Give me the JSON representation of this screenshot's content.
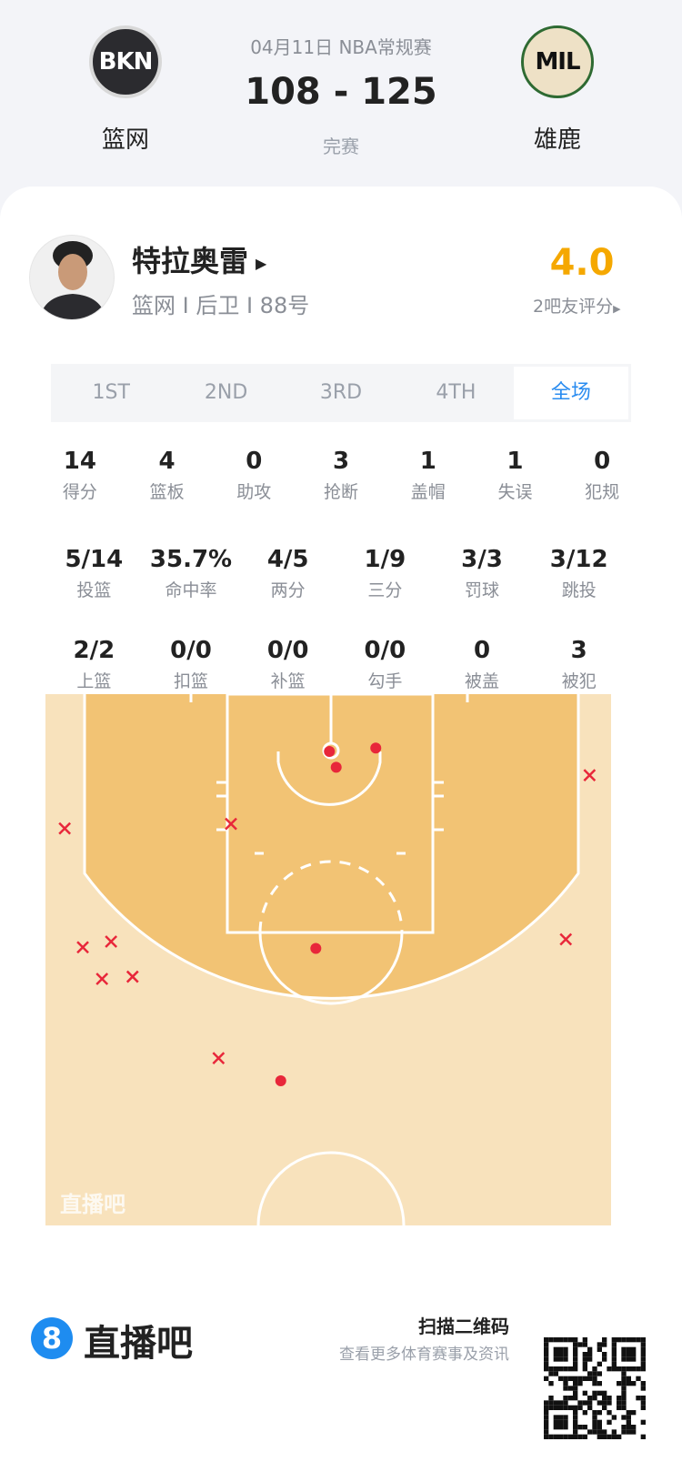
{
  "header": {
    "date_league": "04月11日 NBA常规赛",
    "score": "108 - 125",
    "status": "完赛",
    "home": {
      "abbr": "BKN",
      "name": "篮网"
    },
    "away": {
      "abbr": "MIL",
      "name": "雄鹿"
    }
  },
  "player": {
    "name": "特拉奥雷",
    "info": "篮网 I 后卫 I 88号",
    "rating": "4.0",
    "rating_label": "2吧友评分",
    "rating_color": "#f5a800"
  },
  "tabs": [
    {
      "label": "1ST"
    },
    {
      "label": "2ND"
    },
    {
      "label": "3RD"
    },
    {
      "label": "4TH"
    },
    {
      "label": "全场",
      "active": true
    }
  ],
  "stats_rows": [
    [
      {
        "v": "14",
        "l": "得分"
      },
      {
        "v": "4",
        "l": "篮板"
      },
      {
        "v": "0",
        "l": "助攻"
      },
      {
        "v": "3",
        "l": "抢断"
      },
      {
        "v": "1",
        "l": "盖帽"
      },
      {
        "v": "1",
        "l": "失误"
      },
      {
        "v": "0",
        "l": "犯规"
      }
    ],
    [
      {
        "v": "5/14",
        "l": "投篮"
      },
      {
        "v": "35.7%",
        "l": "命中率"
      },
      {
        "v": "4/5",
        "l": "两分"
      },
      {
        "v": "1/9",
        "l": "三分"
      },
      {
        "v": "3/3",
        "l": "罚球"
      },
      {
        "v": "3/12",
        "l": "跳投"
      }
    ],
    [
      {
        "v": "2/2",
        "l": "上篮"
      },
      {
        "v": "0/0",
        "l": "扣篮"
      },
      {
        "v": "0/0",
        "l": "补篮"
      },
      {
        "v": "0/0",
        "l": "勾手"
      },
      {
        "v": "0",
        "l": "被盖"
      },
      {
        "v": "3",
        "l": "被犯"
      }
    ]
  ],
  "shot_chart": {
    "watermark": "直播吧",
    "shots": [
      {
        "x": 0.1,
        "y": 0,
        "made": true
      },
      {
        "x": 0.7,
        "y": 1.4,
        "made": true
      },
      {
        "x": 4.2,
        "y": -0.3,
        "made": true
      },
      {
        "x": -1.1,
        "y": 17.4,
        "made": true
      },
      {
        "x": -4.2,
        "y": 29.1,
        "made": true
      },
      {
        "x": 23.1,
        "y": 2.1,
        "made": false
      },
      {
        "x": -23.3,
        "y": 6.8,
        "made": false
      },
      {
        "x": -8.6,
        "y": 6.4,
        "made": false
      },
      {
        "x": -21.7,
        "y": 17.3,
        "made": false
      },
      {
        "x": -19.2,
        "y": 16.8,
        "made": false
      },
      {
        "x": -20.0,
        "y": 20.1,
        "made": false
      },
      {
        "x": -17.3,
        "y": 19.9,
        "made": false
      },
      {
        "x": 21.0,
        "y": 16.6,
        "made": false
      },
      {
        "x": -9.7,
        "y": 27.1,
        "made": false
      }
    ]
  },
  "footer": {
    "brand": "直播吧",
    "brand_num": "8",
    "scan": "扫描二维码",
    "sub": "查看更多体育赛事及资讯"
  }
}
